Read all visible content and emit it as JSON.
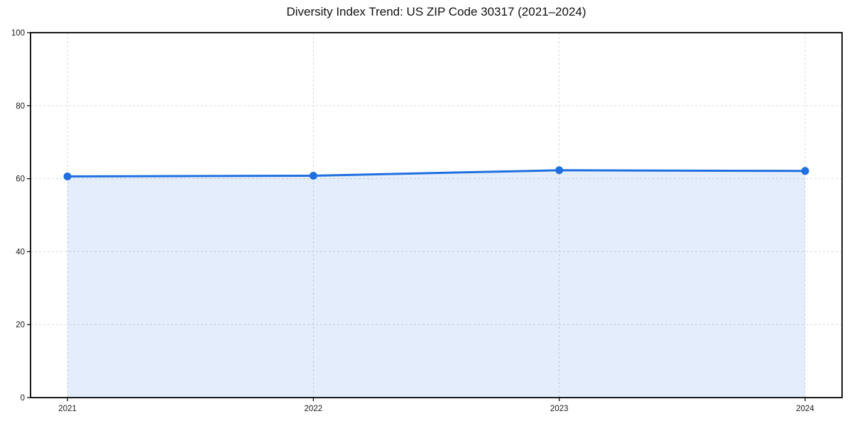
{
  "chart_data": {
    "type": "area",
    "title": "Diversity Index Trend: US ZIP Code 30317 (2021–2024)",
    "categories": [
      "2021",
      "2022",
      "2023",
      "2024"
    ],
    "series": [
      {
        "name": "Diversity Index",
        "values": [
          60.6,
          60.8,
          62.3,
          62.1
        ]
      }
    ],
    "xlabel": "",
    "ylabel": "",
    "ylim": [
      0,
      100
    ],
    "yticks": [
      0,
      20,
      40,
      60,
      80,
      100
    ],
    "grid": true,
    "grid_style": "dashed",
    "legend_position": "none",
    "colors": {
      "line": "#1f6fe0",
      "marker": "#1f6fe0",
      "fill": "#1f6fe0",
      "fill_opacity": 0.12,
      "grid": "#d9d9d9",
      "axis": "#000000",
      "text": "#1a1a1a",
      "background": "#ffffff"
    }
  }
}
